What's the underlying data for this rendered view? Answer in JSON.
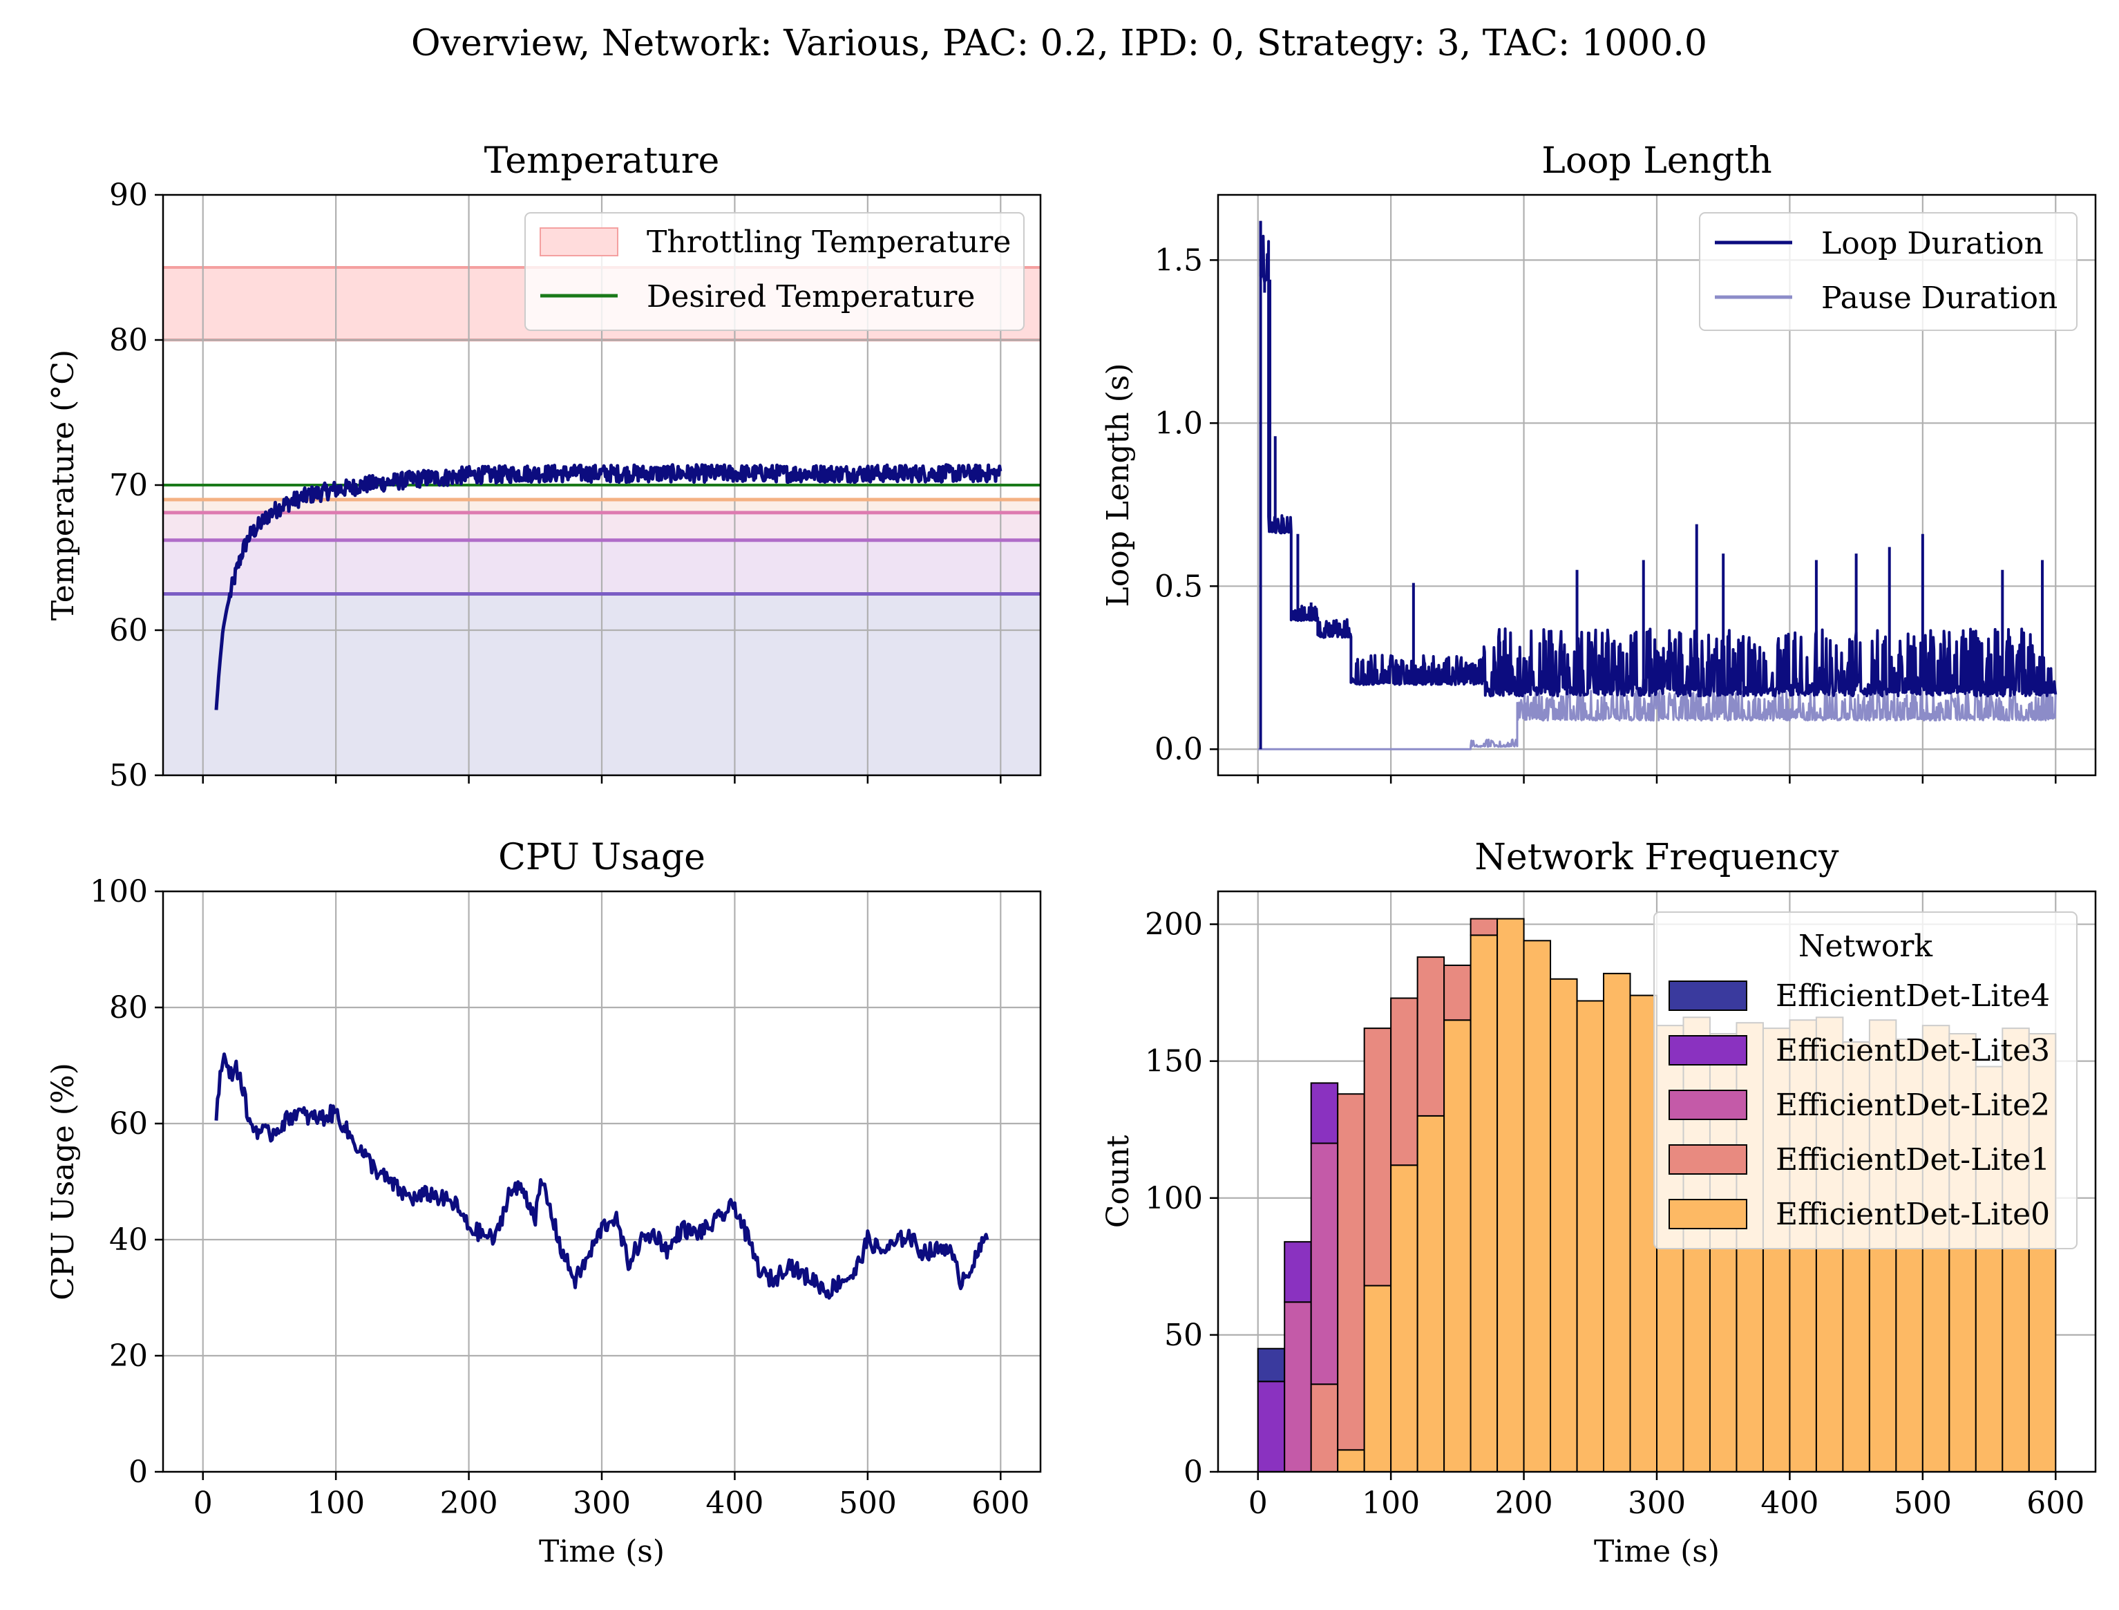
{
  "figure": {
    "suptitle": "Overview, Network: Various, PAC: 0.2, IPD: 0, Strategy: 3, TAC: 1000.0"
  },
  "chart_data": [
    {
      "id": "temperature",
      "type": "line",
      "title": "Temperature",
      "xlabel": "",
      "ylabel": "Temperature (°C)",
      "xlim": [
        -30,
        630
      ],
      "ylim": [
        50,
        90
      ],
      "xticks": [
        0,
        100,
        200,
        300,
        400,
        500,
        600
      ],
      "yticks": [
        50,
        60,
        70,
        80,
        90
      ],
      "ytick_labels": [
        "50",
        "60",
        "70",
        "80",
        "90"
      ],
      "grid": true,
      "legend": {
        "position": "top-right",
        "entries": [
          "Throttling Temperature",
          "Desired Temperature"
        ]
      },
      "throttling_band": [
        80,
        85
      ],
      "desired_temperature": 70,
      "threshold_lines": [
        {
          "y": 69,
          "color": "#f4b183"
        },
        {
          "y": 68.1,
          "color": "#dd7ab0"
        },
        {
          "y": 66.2,
          "color": "#b06cc8"
        },
        {
          "y": 62.5,
          "color": "#7b5cc4"
        }
      ],
      "series": [
        {
          "name": "Temperature",
          "color": "#0c0c7f",
          "x": [
            10,
            12,
            15,
            18,
            22,
            25,
            30,
            35,
            40,
            45,
            50,
            55,
            60,
            70,
            80,
            90,
            100,
            110,
            120,
            130,
            140,
            150,
            160,
            170,
            180,
            190,
            200,
            220,
            240,
            260,
            280,
            300,
            320,
            340,
            360,
            380,
            400,
            420,
            440,
            460,
            480,
            500,
            520,
            540,
            560,
            580,
            600
          ],
          "y": [
            54.5,
            57,
            60,
            61.5,
            63,
            64,
            65.5,
            66.5,
            67,
            67.5,
            68,
            68.3,
            68.6,
            69,
            69.3,
            69.5,
            69.7,
            69.8,
            70,
            70.1,
            70.2,
            70.3,
            70.4,
            70.5,
            70.5,
            70.6,
            70.7,
            70.7,
            70.8,
            70.8,
            70.8,
            70.8,
            70.8,
            70.8,
            70.8,
            70.8,
            70.8,
            70.8,
            70.8,
            70.8,
            70.8,
            70.8,
            70.8,
            70.8,
            70.8,
            70.8,
            70.8
          ],
          "noise": 0.6
        }
      ]
    },
    {
      "id": "loop-length",
      "type": "line",
      "title": "Loop Length",
      "xlabel": "",
      "ylabel": "Loop Length (s)",
      "xlim": [
        -30,
        630
      ],
      "ylim": [
        -0.08,
        1.7
      ],
      "xticks": [
        0,
        100,
        200,
        300,
        400,
        500,
        600
      ],
      "yticks": [
        0,
        0.5,
        1.0,
        1.5
      ],
      "ytick_labels": [
        "0.0",
        "0.5",
        "1.0",
        "1.5"
      ],
      "grid": true,
      "legend": {
        "position": "top-right",
        "entries": [
          "Loop Duration",
          "Pause Duration"
        ]
      },
      "series": [
        {
          "name": "Loop Duration",
          "color": "#0c0c7f",
          "segments": [
            {
              "x0": 2,
              "x1": 8,
              "base": 1.45,
              "spread": 0.15
            },
            {
              "x0": 8,
              "x1": 25,
              "base": 0.67,
              "spread": 0.05
            },
            {
              "x0": 25,
              "x1": 45,
              "base": 0.4,
              "spread": 0.04
            },
            {
              "x0": 45,
              "x1": 70,
              "base": 0.35,
              "spread": 0.05
            },
            {
              "x0": 70,
              "x1": 170,
              "base": 0.21,
              "spread": 0.08
            },
            {
              "x0": 170,
              "x1": 600,
              "base": 0.19,
              "spread": 0.18
            }
          ],
          "spikes": [
            [
              2,
              1.62
            ],
            [
              5,
              1.4
            ],
            [
              9,
              1.44
            ],
            [
              13,
              0.96
            ],
            [
              18,
              0.67
            ],
            [
              30,
              0.66
            ],
            [
              40,
              0.45
            ],
            [
              117,
              0.51
            ],
            [
              182,
              0.33
            ],
            [
              240,
              0.55
            ],
            [
              290,
              0.58
            ],
            [
              330,
              0.69
            ],
            [
              350,
              0.6
            ],
            [
              420,
              0.58
            ],
            [
              450,
              0.6
            ],
            [
              475,
              0.62
            ],
            [
              500,
              0.66
            ],
            [
              560,
              0.55
            ],
            [
              590,
              0.58
            ]
          ]
        },
        {
          "name": "Pause Duration",
          "color": "#8c8cc8",
          "segments": [
            {
              "x0": 0,
              "x1": 160,
              "base": 0.0,
              "spread": 0.0
            },
            {
              "x0": 160,
              "x1": 195,
              "base": 0.01,
              "spread": 0.02
            },
            {
              "x0": 195,
              "x1": 600,
              "base": 0.1,
              "spread": 0.08
            }
          ]
        }
      ]
    },
    {
      "id": "cpu-usage",
      "type": "line",
      "title": "CPU Usage",
      "xlabel": "Time (s)",
      "ylabel": "CPU Usage (%)",
      "xlim": [
        -30,
        630
      ],
      "ylim": [
        0,
        100
      ],
      "xticks": [
        0,
        100,
        200,
        300,
        400,
        500,
        600
      ],
      "xtick_labels": [
        "0",
        "100",
        "200",
        "300",
        "400",
        "500",
        "600"
      ],
      "yticks": [
        0,
        20,
        40,
        60,
        80,
        100
      ],
      "ytick_labels": [
        "0",
        "20",
        "40",
        "60",
        "80",
        "100"
      ],
      "grid": true,
      "series": [
        {
          "name": "CPU Usage",
          "color": "#0c0c7f",
          "x": [
            10,
            15,
            20,
            25,
            30,
            35,
            40,
            50,
            60,
            70,
            80,
            90,
            100,
            110,
            120,
            130,
            140,
            150,
            160,
            170,
            180,
            190,
            200,
            210,
            220,
            230,
            240,
            250,
            255,
            260,
            270,
            280,
            290,
            300,
            310,
            320,
            330,
            340,
            350,
            360,
            370,
            380,
            390,
            400,
            410,
            420,
            430,
            440,
            450,
            460,
            470,
            480,
            490,
            500,
            510,
            520,
            530,
            540,
            550,
            560,
            570,
            580,
            590
          ],
          "y": [
            62,
            72,
            68,
            70,
            66,
            60,
            59,
            58,
            60,
            62,
            61,
            61,
            62,
            58,
            55,
            52,
            50,
            48,
            47,
            48,
            47,
            46,
            42,
            41,
            40,
            48,
            49,
            44,
            50,
            46,
            38,
            33,
            37,
            42,
            44,
            36,
            40,
            41,
            38,
            42,
            41,
            42,
            44,
            46,
            40,
            34,
            33,
            36,
            34,
            33,
            31,
            33,
            34,
            40,
            38,
            39,
            41,
            38,
            38,
            39,
            33,
            36,
            41
          ]
        }
      ]
    },
    {
      "id": "network-frequency",
      "type": "bar",
      "stacked": true,
      "title": "Network Frequency",
      "xlabel": "Time (s)",
      "ylabel": "Count",
      "xlim": [
        -30,
        630
      ],
      "ylim": [
        0,
        212
      ],
      "xticks": [
        0,
        100,
        200,
        300,
        400,
        500,
        600
      ],
      "xtick_labels": [
        "0",
        "100",
        "200",
        "300",
        "400",
        "500",
        "600"
      ],
      "yticks": [
        0,
        50,
        100,
        150,
        200
      ],
      "ytick_labels": [
        "0",
        "50",
        "100",
        "150",
        "200"
      ],
      "grid": true,
      "bin_edges_start": 0,
      "bin_width": 20,
      "legend": {
        "position": "top-right",
        "title": "Network"
      },
      "series": [
        {
          "name": "EfficientDet-Lite4",
          "color": "#3a3a9e",
          "values": [
            12,
            0,
            0,
            0,
            0,
            0,
            0,
            0,
            0,
            0,
            0,
            0,
            0,
            0,
            0,
            0,
            0,
            0,
            0,
            0,
            0,
            0,
            0,
            0,
            0,
            0,
            0,
            0,
            0,
            0
          ]
        },
        {
          "name": "EfficientDet-Lite3",
          "color": "#8a32c0",
          "values": [
            33,
            22,
            22,
            0,
            0,
            0,
            0,
            0,
            0,
            0,
            0,
            0,
            0,
            0,
            0,
            0,
            0,
            0,
            0,
            0,
            0,
            0,
            0,
            0,
            0,
            0,
            0,
            0,
            0,
            0
          ]
        },
        {
          "name": "EfficientDet-Lite2",
          "color": "#c45aa8",
          "values": [
            0,
            62,
            88,
            0,
            0,
            0,
            0,
            0,
            0,
            0,
            0,
            0,
            0,
            0,
            0,
            0,
            0,
            0,
            0,
            0,
            0,
            0,
            0,
            0,
            0,
            0,
            0,
            0,
            0,
            0
          ]
        },
        {
          "name": "EfficientDet-Lite1",
          "color": "#e88a80",
          "values": [
            0,
            0,
            32,
            130,
            94,
            61,
            58,
            20,
            6,
            0,
            0,
            0,
            0,
            0,
            0,
            0,
            0,
            0,
            0,
            0,
            0,
            0,
            0,
            0,
            0,
            0,
            0,
            0,
            0,
            0
          ]
        },
        {
          "name": "EfficientDet-Lite0",
          "color": "#fdb964",
          "values": [
            0,
            0,
            0,
            8,
            68,
            112,
            130,
            165,
            196,
            202,
            194,
            180,
            172,
            182,
            174,
            163,
            166,
            160,
            164,
            162,
            165,
            166,
            157,
            165,
            158,
            163,
            160,
            148,
            162,
            160
          ]
        }
      ]
    }
  ]
}
